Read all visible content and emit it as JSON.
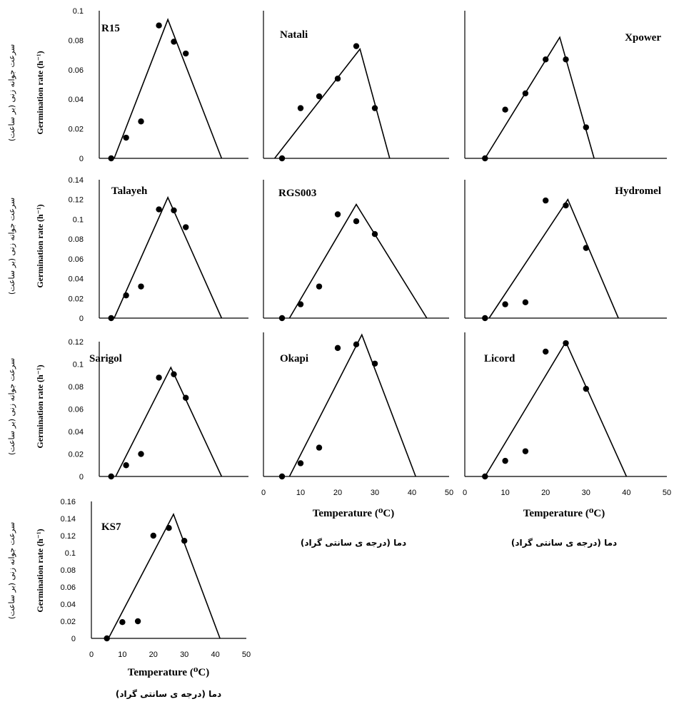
{
  "figure": {
    "ylabel_en": "Germination rate (h⁻¹)",
    "ylabel_fa": "سرعت جوانه زنی (بر ساعت)",
    "xlabel_en": "Temperature (⁰C)",
    "xlabel_fa": "دما (درجه ی سانتی گراد)"
  },
  "chart_data": [
    {
      "type": "scatter",
      "title": "R15",
      "xlim": [
        0,
        50
      ],
      "ylim": [
        0,
        0.1
      ],
      "yticks": [
        "0",
        "0.02",
        "0.04",
        "0.06",
        "0.08",
        "0.1"
      ],
      "show_yticks": true,
      "show_xticks": false,
      "x": [
        4,
        9,
        14,
        20,
        25,
        29
      ],
      "y": [
        0.0,
        0.014,
        0.025,
        0.09,
        0.079,
        0.071
      ],
      "model": {
        "base": 5,
        "optimum": 23,
        "maximum": 41,
        "peak": 0.094
      }
    },
    {
      "type": "scatter",
      "title": "Natali",
      "xlim": [
        0,
        50
      ],
      "ylim": [
        0,
        0.1
      ],
      "yticks": [],
      "show_yticks": false,
      "show_xticks": false,
      "x": [
        5,
        10,
        15,
        20,
        25,
        30
      ],
      "y": [
        0.0,
        0.034,
        0.042,
        0.054,
        0.076,
        0.034
      ],
      "model": {
        "base": 3,
        "optimum": 26,
        "maximum": 34,
        "peak": 0.074
      }
    },
    {
      "type": "scatter",
      "title": "Xpower",
      "xlim": [
        0,
        50
      ],
      "ylim": [
        0,
        0.1
      ],
      "yticks": [],
      "show_yticks": false,
      "show_xticks": false,
      "x": [
        5,
        10,
        15,
        20,
        25,
        30
      ],
      "y": [
        0.0,
        0.033,
        0.044,
        0.067,
        0.067,
        0.021
      ],
      "model": {
        "base": 5,
        "optimum": 23.5,
        "maximum": 32,
        "peak": 0.082
      }
    },
    {
      "type": "scatter",
      "title": "Talayeh",
      "xlim": [
        0,
        50
      ],
      "ylim": [
        0,
        0.14
      ],
      "yticks": [
        "0",
        "0.02",
        "0.04",
        "0.06",
        "0.08",
        "0.1",
        "0.12",
        "0.14"
      ],
      "show_yticks": true,
      "show_xticks": false,
      "x": [
        4,
        9,
        14,
        20,
        25,
        29
      ],
      "y": [
        0.0,
        0.023,
        0.032,
        0.11,
        0.109,
        0.092
      ],
      "model": {
        "base": 5,
        "optimum": 23,
        "maximum": 41,
        "peak": 0.122
      }
    },
    {
      "type": "scatter",
      "title": "RGS003",
      "xlim": [
        0,
        50
      ],
      "ylim": [
        0,
        0.14
      ],
      "yticks": [],
      "show_yticks": false,
      "show_xticks": false,
      "x": [
        5,
        10,
        15,
        20,
        25,
        30
      ],
      "y": [
        0.0,
        0.014,
        0.032,
        0.105,
        0.098,
        0.085
      ],
      "model": {
        "base": 7,
        "optimum": 25,
        "maximum": 44,
        "peak": 0.115
      }
    },
    {
      "type": "scatter",
      "title": "Hydromel",
      "xlim": [
        0,
        50
      ],
      "ylim": [
        0,
        0.14
      ],
      "yticks": [],
      "show_yticks": false,
      "show_xticks": false,
      "x": [
        5,
        10,
        15,
        20,
        25,
        30
      ],
      "y": [
        0.0,
        0.014,
        0.016,
        0.119,
        0.114,
        0.071
      ],
      "model": {
        "base": 6,
        "optimum": 25.5,
        "maximum": 38,
        "peak": 0.12
      }
    },
    {
      "type": "scatter",
      "title": "Sarigol",
      "xlim": [
        0,
        50
      ],
      "ylim": [
        0,
        0.12
      ],
      "yticks": [
        "0",
        "0.02",
        "0.04",
        "0.06",
        "0.08",
        "0.1",
        "0.12"
      ],
      "show_yticks": true,
      "show_xticks": false,
      "x": [
        4,
        9,
        14,
        20,
        25,
        29
      ],
      "y": [
        0.0,
        0.01,
        0.02,
        0.088,
        0.091,
        0.07
      ],
      "model": {
        "base": 5.5,
        "optimum": 24,
        "maximum": 41,
        "peak": 0.097
      }
    },
    {
      "type": "scatter",
      "title": "Okapi",
      "xlim": [
        0,
        50
      ],
      "ylim": [
        0,
        0.12
      ],
      "yticks": [],
      "show_yticks": false,
      "show_xticks": true,
      "xticks": [
        "0",
        "10",
        "20",
        "30",
        "40",
        "50"
      ],
      "x": [
        5,
        10,
        15,
        20,
        25,
        30
      ],
      "y": [
        0.0,
        0.011,
        0.024,
        0.107,
        0.11,
        0.094
      ],
      "model": {
        "base": 7,
        "optimum": 26.5,
        "maximum": 41,
        "peak": 0.118
      }
    },
    {
      "type": "scatter",
      "title": "Licord",
      "xlim": [
        0,
        50
      ],
      "ylim": [
        0,
        0.12
      ],
      "yticks": [],
      "show_yticks": false,
      "show_xticks": true,
      "xticks": [
        "0",
        "10",
        "20",
        "30",
        "40",
        "50"
      ],
      "x": [
        5,
        10,
        15,
        20,
        25,
        30
      ],
      "y": [
        0.0,
        0.013,
        0.021,
        0.104,
        0.111,
        0.073
      ],
      "model": {
        "base": 5,
        "optimum": 25,
        "maximum": 40,
        "peak": 0.112
      }
    },
    {
      "type": "scatter",
      "title": "KS7",
      "xlim": [
        0,
        50
      ],
      "ylim": [
        0,
        0.16
      ],
      "yticks": [
        "0",
        "0.02",
        "0.04",
        "0.06",
        "0.08",
        "0.1",
        "0.12",
        "0.14",
        "0.16"
      ],
      "show_yticks": true,
      "show_xticks": true,
      "xticks": [
        "0",
        "10",
        "20",
        "30",
        "40",
        "50"
      ],
      "x": [
        5,
        10,
        15,
        20,
        25,
        30
      ],
      "y": [
        0.0,
        0.019,
        0.02,
        0.12,
        0.129,
        0.114
      ],
      "model": {
        "base": 5.5,
        "optimum": 26.5,
        "maximum": 41.5,
        "peak": 0.145
      }
    }
  ]
}
